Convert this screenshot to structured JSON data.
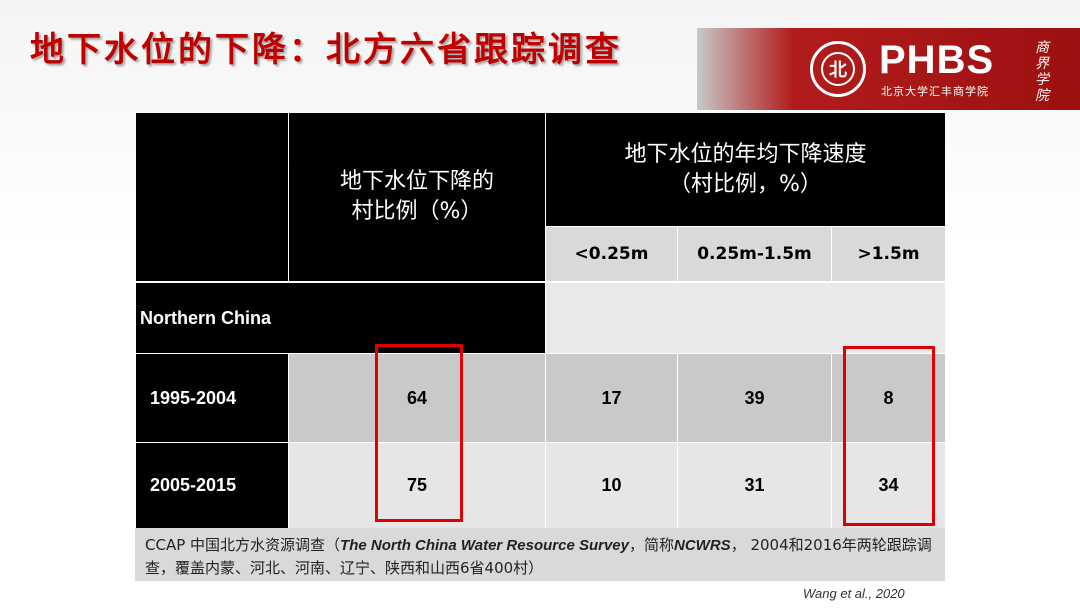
{
  "slide_title": "地下水位的下降：北方六省跟踪调查",
  "brand": {
    "name": "PHBS",
    "subtitle": "北京大学汇丰商学院",
    "seal_char": "北",
    "script": "商界学院"
  },
  "table": {
    "header_share": "地下水位下降的\n村比例（%）",
    "header_speed": "地下水位的年均下降速度\n（村比例，%）",
    "speed_columns": [
      "<0.25m",
      "0.25m-1.5m",
      ">1.5m"
    ],
    "region_label": "Northern China",
    "rows": [
      {
        "period": "1995-2004",
        "share": "64",
        "lt025": "17",
        "mid": "39",
        "gt15": "8"
      },
      {
        "period": "2005-2015",
        "share": "75",
        "lt025": "10",
        "mid": "31",
        "gt15": "34"
      }
    ]
  },
  "note": {
    "prefix": "CCAP 中国北方水资源调查（",
    "survey_name": "The North China Water Resource Survey",
    "mid": "，简称",
    "abbr": "NCWRS",
    "suffix": "， 2004和2016年两轮跟踪调查，覆盖内蒙、河北、河南、辽宁、陕西和山西6省400村）"
  },
  "citation": "Wang et al., 2020",
  "colors": {
    "title": "#c00000",
    "highlight_box": "#e00000",
    "brand_bg": "#9d1010"
  }
}
